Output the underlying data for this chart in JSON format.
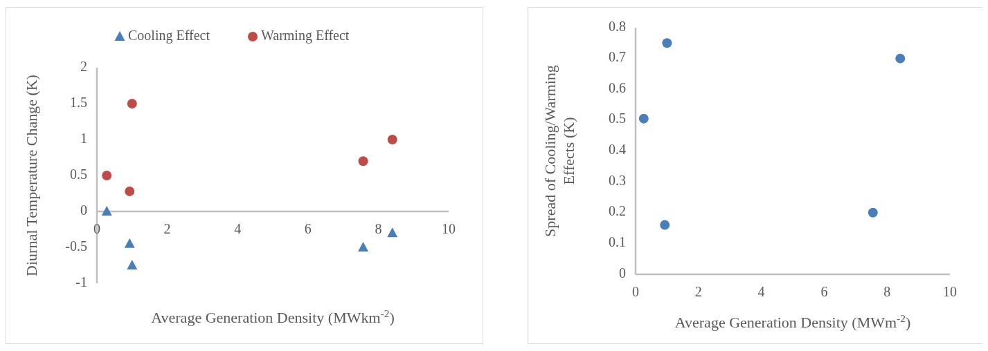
{
  "chart_data": [
    {
      "type": "scatter",
      "xlabel": "Average Generation Density (MWkm$^{-2}$)",
      "ylabel": "Diurnal Temperature Change (K)",
      "xlim": [
        0,
        10
      ],
      "xticks": [
        0,
        2,
        4,
        6,
        8,
        10
      ],
      "ylim": [
        -1,
        2
      ],
      "yticks": [
        -1,
        -0.5,
        0,
        0.5,
        1,
        1.5,
        2
      ],
      "legend": "top",
      "series": [
        {
          "name": "Cooling Effect",
          "color": "#4a7ebb",
          "marker": "triangle",
          "x": [
            0.28,
            0.93,
            1.0,
            7.57,
            8.4
          ],
          "values": [
            0,
            -0.45,
            -0.75,
            -0.5,
            -0.3
          ]
        },
        {
          "name": "Warming Effect",
          "color": "#be4b48",
          "marker": "circle",
          "x": [
            0.28,
            0.93,
            1.0,
            7.57,
            8.4
          ],
          "values": [
            0.5,
            0.28,
            1.5,
            0.7,
            1.0
          ]
        }
      ]
    },
    {
      "type": "scatter",
      "xlabel": "Average Generation Density (MWm$^{-2}$)",
      "ylabel": "Spread of Cooling/Warming Effects (K)",
      "xlim": [
        0,
        10
      ],
      "xticks": [
        0,
        2,
        4,
        6,
        8,
        10
      ],
      "ylim": [
        0,
        0.8
      ],
      "yticks": [
        0,
        0.1,
        0.2,
        0.3,
        0.4,
        0.5,
        0.6,
        0.7,
        0.8
      ],
      "series": [
        {
          "color": "#4a7ebb",
          "marker": "circle",
          "x": [
            0.26,
            0.93,
            1.0,
            7.55,
            8.42
          ],
          "values": [
            0.505,
            0.16,
            0.75,
            0.2,
            0.7
          ]
        }
      ]
    }
  ]
}
